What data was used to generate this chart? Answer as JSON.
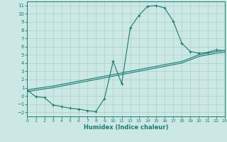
{
  "xlabel": "Humidex (Indice chaleur)",
  "xlim": [
    0,
    23
  ],
  "ylim": [
    -2.5,
    11.5
  ],
  "xticks": [
    0,
    1,
    2,
    3,
    4,
    5,
    6,
    7,
    8,
    9,
    10,
    11,
    12,
    13,
    14,
    15,
    16,
    17,
    18,
    19,
    20,
    21,
    22,
    23
  ],
  "yticks": [
    -2,
    -1,
    0,
    1,
    2,
    3,
    4,
    5,
    6,
    7,
    8,
    9,
    10,
    11
  ],
  "bg_color": "#cce8e4",
  "grid_color": "#aacfca",
  "line_color": "#1a7a72",
  "curve_x": [
    0,
    1,
    2,
    3,
    4,
    5,
    6,
    7,
    8,
    9,
    10,
    11,
    12,
    13,
    14,
    15,
    16,
    17,
    18,
    19,
    20,
    21,
    22,
    23
  ],
  "curve1_y": [
    0.7,
    -0.1,
    -0.2,
    -1.1,
    -1.3,
    -1.5,
    -1.6,
    -1.8,
    -1.9,
    -0.3,
    4.2,
    1.5,
    8.3,
    9.8,
    10.9,
    11.0,
    10.7,
    9.1,
    6.4,
    5.4,
    5.2,
    5.3,
    5.6,
    5.5
  ],
  "line2_x": [
    0,
    1,
    2,
    3,
    4,
    5,
    6,
    7,
    8,
    9,
    10,
    11,
    12,
    13,
    14,
    15,
    16,
    17,
    18,
    19,
    20,
    21,
    22,
    23
  ],
  "line2_y": [
    0.7,
    0.9,
    1.05,
    1.2,
    1.4,
    1.6,
    1.8,
    2.0,
    2.2,
    2.4,
    2.6,
    2.8,
    3.0,
    3.2,
    3.4,
    3.6,
    3.8,
    4.0,
    4.2,
    4.6,
    5.0,
    5.2,
    5.4,
    5.5
  ],
  "line3_x": [
    0,
    1,
    2,
    3,
    4,
    5,
    6,
    7,
    8,
    9,
    10,
    11,
    12,
    13,
    14,
    15,
    16,
    17,
    18,
    19,
    20,
    21,
    22,
    23
  ],
  "line3_y": [
    0.5,
    0.7,
    0.85,
    1.0,
    1.2,
    1.4,
    1.6,
    1.8,
    2.0,
    2.2,
    2.4,
    2.6,
    2.8,
    3.0,
    3.2,
    3.4,
    3.6,
    3.8,
    4.0,
    4.4,
    4.8,
    5.0,
    5.2,
    5.3
  ]
}
